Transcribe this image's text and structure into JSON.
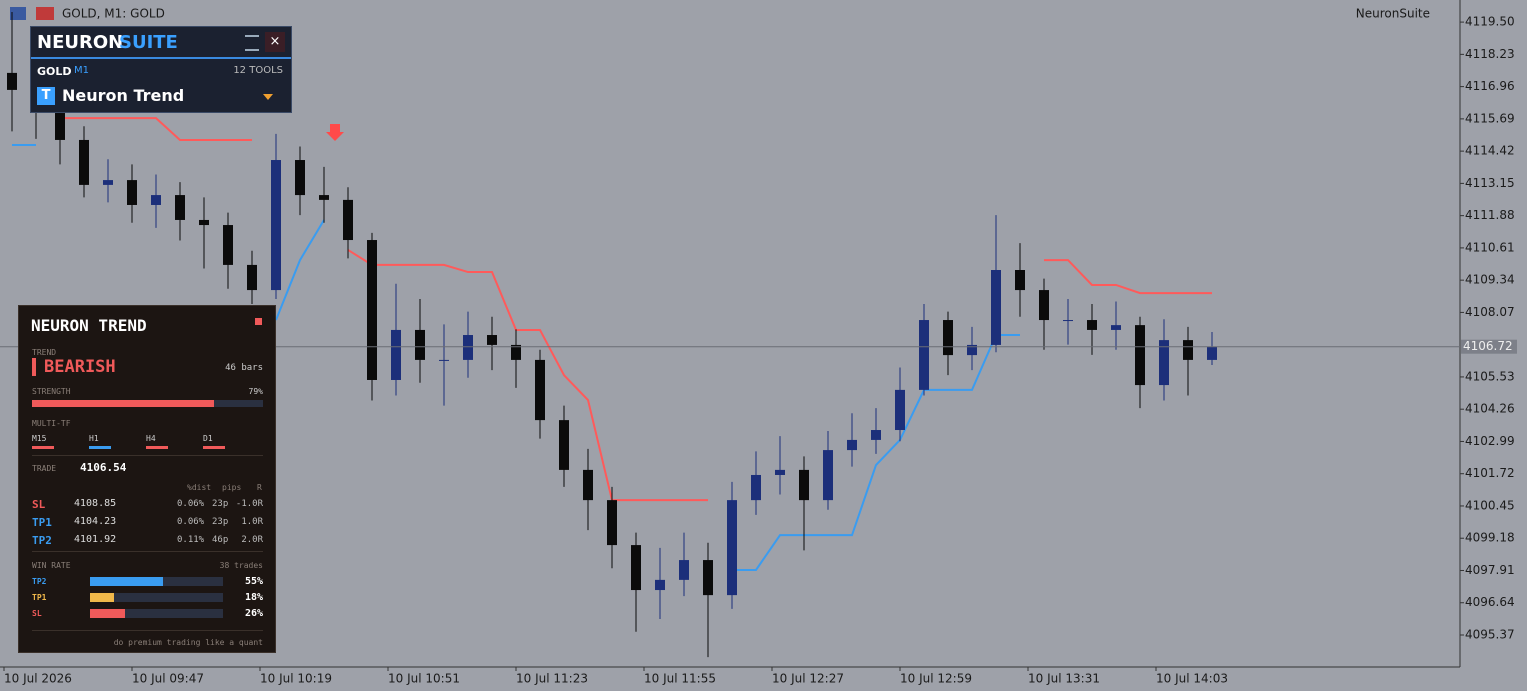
{
  "chart_data": {
    "type": "candlestick",
    "window_title": "GOLD, M1:  GOLD",
    "brand": "NeuronSuite",
    "open": [
      4117.5,
      4116.83,
      4116.04,
      4114.86,
      4113.09,
      4113.28,
      4112.3,
      4112.69,
      4111.71,
      4111.51,
      4109.94,
      4108.95,
      4114.07,
      4112.69,
      4112.5,
      4110.92,
      4105.41,
      4107.38,
      4106.2,
      4106.2,
      4107.18,
      4106.79,
      4106.2,
      4103.83,
      4101.87,
      4100.68,
      4098.91,
      4097.14,
      4097.54,
      4098.32,
      4096.94,
      4100.68,
      4101.67,
      4101.87,
      4100.68,
      4102.65,
      4103.05,
      4103.44,
      4105.02,
      4107.77,
      4106.39,
      4106.79,
      4109.74,
      4108.95,
      4107.77,
      4107.77,
      4107.38,
      4107.57,
      4105.21,
      4106.98,
      4106.2
    ],
    "high": [
      4119.9,
      4117.6,
      4116.5,
      4115.4,
      4114.1,
      4113.9,
      4113.5,
      4113.2,
      4112.6,
      4112.0,
      4110.5,
      4115.1,
      4114.6,
      4113.8,
      4113.0,
      4111.2,
      4109.2,
      4108.6,
      4107.6,
      4108.1,
      4107.9,
      4107.4,
      4106.6,
      4104.4,
      4102.7,
      4101.2,
      4099.4,
      4098.8,
      4099.4,
      4099.0,
      4101.4,
      4102.6,
      4103.2,
      4102.4,
      4103.4,
      4104.1,
      4104.3,
      4105.9,
      4108.4,
      4108.1,
      4107.5,
      4111.9,
      4110.8,
      4109.4,
      4108.6,
      4108.4,
      4108.5,
      4107.9,
      4107.8,
      4107.5,
      4107.3
    ],
    "low": [
      4115.2,
      4114.9,
      4113.9,
      4112.6,
      4112.4,
      4111.6,
      4111.4,
      4110.9,
      4109.8,
      4109.0,
      4108.4,
      4108.6,
      4111.9,
      4111.6,
      4110.2,
      4104.6,
      4104.8,
      4105.3,
      4104.4,
      4105.5,
      4105.8,
      4105.1,
      4103.1,
      4101.2,
      4099.5,
      4098.0,
      4095.5,
      4096.0,
      4096.9,
      4094.5,
      4096.4,
      4100.1,
      4100.9,
      4098.7,
      4100.3,
      4102.0,
      4102.5,
      4103.0,
      4104.8,
      4105.6,
      4105.8,
      4106.5,
      4107.9,
      4106.6,
      4106.8,
      4106.4,
      4106.6,
      4104.3,
      4104.6,
      4104.8,
      4106.0
    ],
    "close": [
      4116.83,
      4116.04,
      4114.86,
      4113.09,
      4113.28,
      4112.3,
      4112.69,
      4111.71,
      4111.51,
      4109.94,
      4108.95,
      4114.07,
      4112.69,
      4112.5,
      4110.92,
      4105.41,
      4107.38,
      4106.2,
      4106.2,
      4107.18,
      4106.79,
      4106.2,
      4103.83,
      4101.87,
      4100.68,
      4098.91,
      4097.14,
      4097.54,
      4098.32,
      4096.94,
      4100.68,
      4101.67,
      4101.87,
      4100.68,
      4102.65,
      4103.05,
      4103.44,
      4105.02,
      4107.77,
      4106.39,
      4106.79,
      4109.74,
      4108.95,
      4107.77,
      4107.77,
      4107.38,
      4107.57,
      4105.21,
      4106.98,
      4106.2,
      4106.72
    ],
    "bull_color": "#1c2f7a",
    "bear_color": "#0b0b0b",
    "series": [
      {
        "color": "#ff5a5a",
        "values": [
          null,
          null,
          4115.72,
          4115.72,
          4115.72,
          4115.72,
          4115.72,
          4114.86,
          4114.86,
          4114.86,
          4114.86,
          null,
          null,
          null,
          4110.53,
          4109.94,
          4109.94,
          4109.94,
          4109.94,
          4109.66,
          4109.66,
          4107.38,
          4107.38,
          4105.6,
          4104.62,
          4100.68,
          4100.68,
          4100.68,
          4100.68,
          4100.68,
          null,
          null,
          null,
          null,
          null,
          null,
          null,
          null,
          null,
          null,
          null,
          null,
          null,
          4110.13,
          4110.13,
          4109.15,
          4109.15,
          4108.83,
          4108.83,
          4108.83,
          4108.83
        ]
      },
      {
        "color": "#3a9cf0",
        "values": [
          4114.66,
          4114.66,
          null,
          null,
          null,
          null,
          null,
          null,
          null,
          null,
          null,
          4107.77,
          4110.13,
          4111.71,
          null,
          null,
          null,
          null,
          null,
          null,
          null,
          null,
          null,
          null,
          null,
          null,
          null,
          null,
          null,
          null,
          4097.93,
          4097.93,
          4099.3,
          4099.3,
          4099.3,
          4099.3,
          4102.06,
          4103.05,
          4105.02,
          4105.02,
          4105.02,
          4107.18,
          4107.18,
          null,
          null,
          null,
          null,
          null,
          null,
          null,
          null
        ]
      }
    ],
    "current_price": 4106.72,
    "ylim": [
      4094.11,
      4120.37
    ],
    "yticks": [
      {
        "value": 4119.5,
        "label": "4119.50"
      },
      4118.23,
      4116.96,
      4115.69,
      4114.42,
      4113.15,
      4111.88,
      4110.61,
      4109.34,
      4108.07,
      4105.53,
      4104.26,
      4102.99,
      4101.72,
      4100.45,
      4099.18,
      4097.91,
      4096.64,
      4095.37
    ],
    "time_labels": [
      "10 Jul 2026",
      "10 Jul 09:47",
      "10 Jul 10:19",
      "10 Jul 10:51",
      "10 Jul 11:23",
      "10 Jul 11:55",
      "10 Jul 12:27",
      "10 Jul 12:59",
      "10 Jul 13:31",
      "10 Jul 14:03"
    ]
  },
  "suite": {
    "brand_1": "NEURON",
    "brand_2": "SUITE",
    "symbol": "GOLD",
    "timeframe": "M1",
    "tools": "12 TOOLS",
    "tool_icon": "T",
    "tool": "Neuron Trend"
  },
  "trend_panel": {
    "title": "NEURON TREND",
    "trend_label": "TREND",
    "trend": "BEARISH",
    "bars": "46 bars",
    "strength_label": "STRENGTH",
    "strength": {
      "value": 79,
      "label": "79%"
    },
    "mtf_label": "MULTI-TF",
    "mtf": [
      {
        "name": "M15",
        "color": "#f05a5a"
      },
      {
        "name": "H1",
        "color": "#3a9cf0"
      },
      {
        "name": "H4",
        "color": "#f05a5a"
      },
      {
        "name": "D1",
        "color": "#f05a5a"
      }
    ],
    "trade_label": "TRADE",
    "trade": 4106.54,
    "columns": [
      "%dist",
      "pips",
      "R"
    ],
    "levels": [
      {
        "name": "SL",
        "color": "#f05a5a",
        "price": 4108.85,
        "dist": "0.06%",
        "pips": "23p",
        "r": "-1.0R"
      },
      {
        "name": "TP1",
        "color": "#3a9cf0",
        "price": 4104.23,
        "dist": "0.06%",
        "pips": "23p",
        "r": "1.0R"
      },
      {
        "name": "TP2",
        "color": "#3a9cf0",
        "price": 4101.92,
        "dist": "0.11%",
        "pips": "46p",
        "r": "2.0R"
      }
    ],
    "winrate_label": "WIN RATE",
    "trades": "38 trades",
    "winrate": [
      {
        "name": "TP2",
        "color": "#3a9cf0",
        "value": 55,
        "label": "55%"
      },
      {
        "name": "TP1",
        "color": "#f0b84a",
        "value": 18,
        "label": "18%"
      },
      {
        "name": "SL",
        "color": "#f05a5a",
        "value": 26,
        "label": "26%"
      }
    ],
    "footer": "do premium trading like a quant"
  }
}
